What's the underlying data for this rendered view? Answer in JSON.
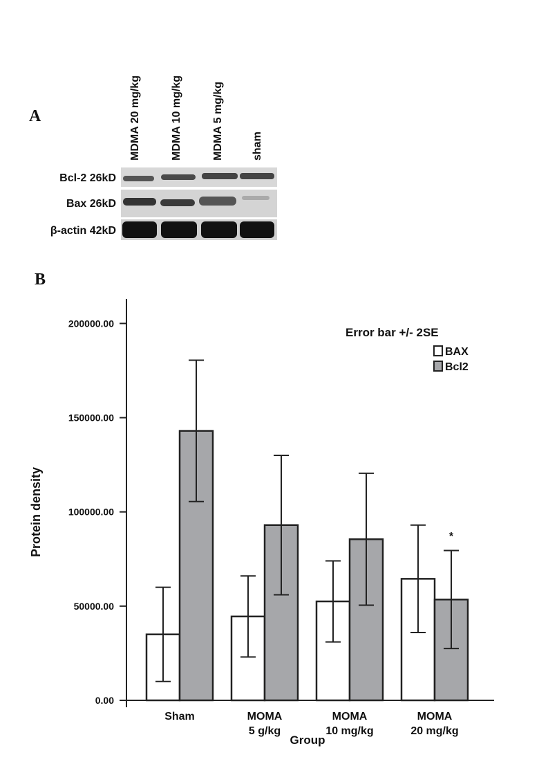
{
  "panel_a": {
    "label": "A",
    "lanes": [
      "MDMA 20 mg/kg",
      "MDMA 10 mg/kg",
      "MDMA 5 mg/kg",
      "sham"
    ],
    "rows": [
      "Bcl-2 26kD",
      "Bax 26kD",
      "β-actin 42kD"
    ]
  },
  "chart_data": {
    "type": "bar",
    "panel_label": "B",
    "y_label": "Protein density",
    "x_label": "Group",
    "legend_title": "Error bar +/- 2SE",
    "categories": [
      "Sham",
      "MOMA\n5 g/kg",
      "MOMA\n10 mg/kg",
      "MOMA\n20 mg/kg"
    ],
    "series": [
      {
        "name": "BAX",
        "color": "#ffffff",
        "values": [
          35000,
          44500,
          52500,
          64500
        ],
        "errors": [
          25000,
          21500,
          21500,
          28500
        ]
      },
      {
        "name": "Bcl2",
        "color": "#a6a7aa",
        "values": [
          143000,
          93000,
          85500,
          53500
        ],
        "errors": [
          37500,
          37000,
          35000,
          26000
        ]
      }
    ],
    "annotation": "*",
    "ylim": [
      0,
      213000
    ],
    "yticks": [
      {
        "value": 0,
        "label": "0.00"
      },
      {
        "value": 50000,
        "label": "50000.00"
      },
      {
        "value": 100000,
        "label": "100000.00"
      },
      {
        "value": 150000,
        "label": "150000.00"
      },
      {
        "value": 200000,
        "label": "200000.00"
      }
    ]
  }
}
